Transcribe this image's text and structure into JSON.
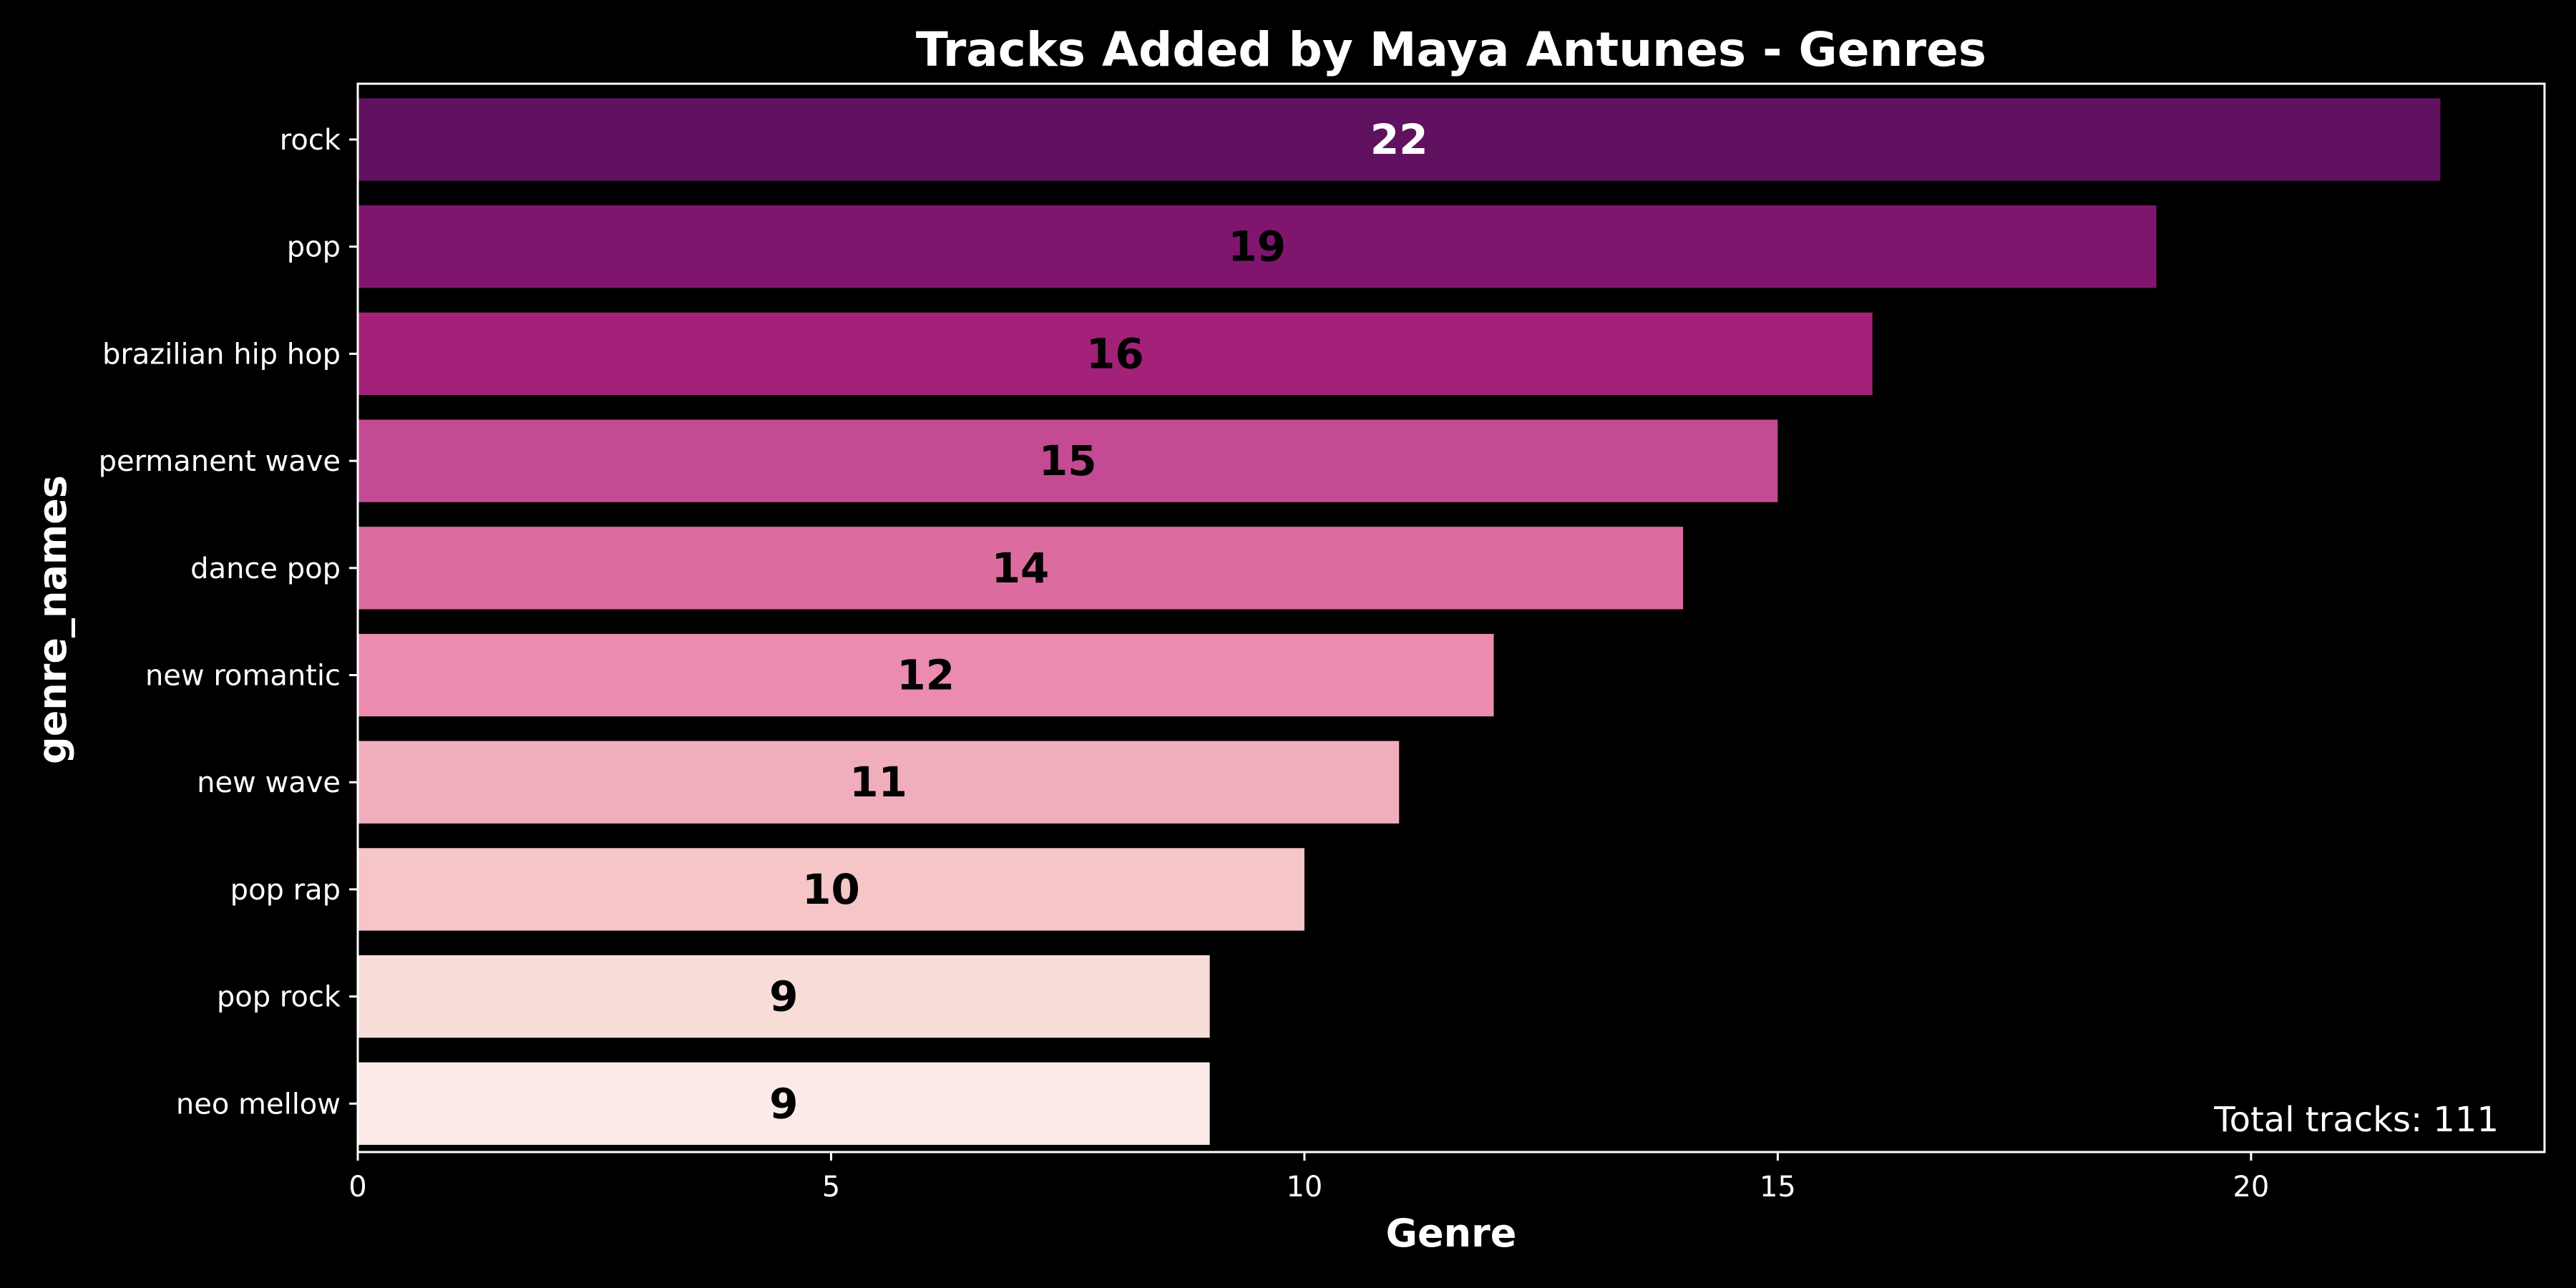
{
  "chart_data": {
    "type": "bar",
    "orientation": "horizontal",
    "title": "Tracks Added by Maya Antunes - Genres",
    "xlabel": "Genre",
    "ylabel": "genre_names",
    "categories": [
      "rock",
      "pop",
      "brazilian hip hop",
      "permanent wave",
      "dance pop",
      "new romantic",
      "new wave",
      "pop rap",
      "pop rock",
      "neo mellow"
    ],
    "values": [
      22,
      19,
      16,
      15,
      14,
      12,
      11,
      10,
      9,
      9
    ],
    "value_labels": [
      "22",
      "19",
      "16",
      "15",
      "14",
      "12",
      "11",
      "10",
      "9",
      "9"
    ],
    "xlim": [
      0,
      23.1
    ],
    "xticks": [
      0,
      5,
      10,
      15,
      20
    ],
    "xtick_labels": [
      "0",
      "5",
      "10",
      "15",
      "20"
    ],
    "grid": false,
    "annotation": "Total tracks: 111",
    "colors": {
      "background": "#000000",
      "axes": "#ffffff",
      "text": "#ffffff",
      "bars": [
        "#601160",
        "#80156e",
        "#a32178",
        "#c44a93",
        "#dc6ba0",
        "#eb8bb0",
        "#f0aebd",
        "#f5c5c8",
        "#f8dcd8",
        "#fbeae8"
      ],
      "bar_label_colors": [
        "#ffffff",
        "#000000",
        "#000000",
        "#000000",
        "#000000",
        "#000000",
        "#000000",
        "#000000",
        "#000000",
        "#000000"
      ]
    }
  }
}
